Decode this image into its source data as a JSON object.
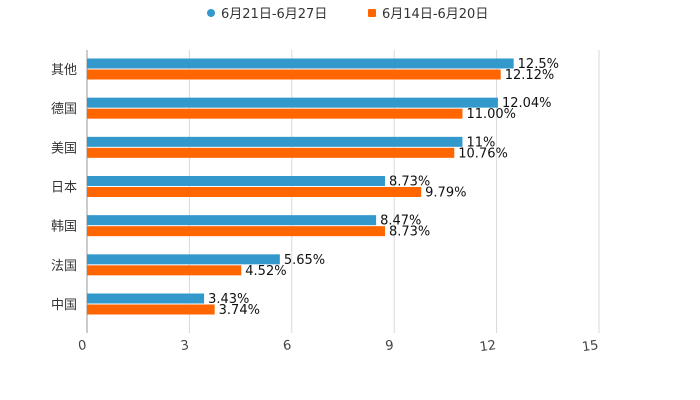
{
  "chart_data": {
    "type": "bar",
    "orientation": "horizontal",
    "title": "",
    "xlabel": "",
    "ylabel": "",
    "xlim": [
      0,
      15
    ],
    "xticks": [
      0,
      3,
      6,
      9,
      12,
      15
    ],
    "xtick_labels": [
      "0",
      "3",
      "6",
      "9",
      "12",
      "15"
    ],
    "grid": true,
    "legend_position": "top-center",
    "categories": [
      "其他",
      "德国",
      "美国",
      "日本",
      "韩国",
      "法国",
      "中国"
    ],
    "series": [
      {
        "name": "6月21日-6月27日",
        "color": "#3399cc",
        "values": [
          12.5,
          12.04,
          11,
          8.73,
          8.47,
          5.65,
          3.43
        ],
        "labels": [
          "12.5%",
          "12.04%",
          "11%",
          "8.73%",
          "8.47%",
          "5.65%",
          "3.43%"
        ]
      },
      {
        "name": "6月14日-6月20日",
        "color": "#ff6600",
        "values": [
          12.12,
          11.0,
          10.76,
          9.79,
          8.73,
          4.52,
          3.74
        ],
        "labels": [
          "12.12%",
          "11.00%",
          "10.76%",
          "9.79%",
          "8.73%",
          "4.52%",
          "3.74%"
        ]
      }
    ]
  }
}
